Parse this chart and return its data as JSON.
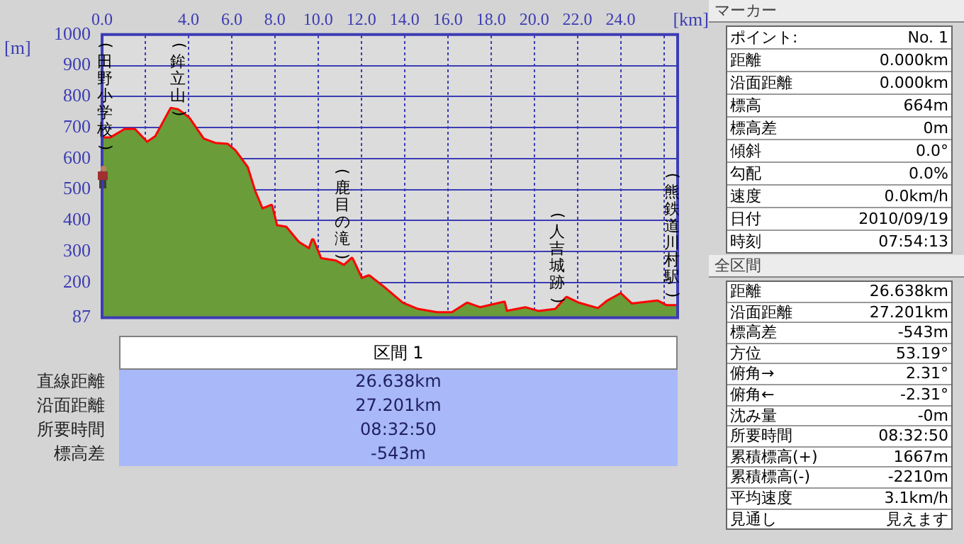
{
  "chart_data": [
    {
      "type": "area",
      "xlabel": "[km]",
      "ylabel": "[m]",
      "grid": true,
      "marker": "none",
      "x": [
        0,
        0.4,
        1.06,
        1.5,
        2.08,
        2.5,
        3.2,
        3.5,
        4.0,
        4.67,
        5.24,
        5.8,
        6.14,
        6.7,
        7.04,
        7.4,
        7.83,
        8.06,
        8.5,
        9.07,
        9.6,
        9.75,
        10.1,
        10.8,
        11.2,
        11.56,
        12.0,
        12.35,
        13.0,
        13.9,
        14.6,
        15.5,
        16.2,
        16.9,
        17.5,
        18.6,
        18.7,
        19.6,
        20.2,
        21.0,
        21.5,
        22.05,
        22.96,
        23.4,
        24.0,
        24.5,
        25.7,
        26.1,
        26.6
      ],
      "series": [
        {
          "type": "area",
          "color": "#6a9c3a",
          "values": [
            665,
            665,
            692,
            692,
            650,
            670,
            760,
            756,
            730,
            662,
            647,
            644,
            624,
            571,
            495,
            435,
            447,
            382,
            377,
            329,
            306,
            336,
            276,
            268,
            253,
            276,
            211,
            220,
            185,
            132,
            112,
            101,
            101,
            132,
            117,
            135,
            105,
            117,
            105,
            112,
            150,
            132,
            114,
            139,
            162,
            129,
            139,
            124,
            124
          ]
        },
        {
          "type": "line",
          "color": "#ff0000",
          "values": [
            665,
            665,
            692,
            692,
            650,
            670,
            760,
            756,
            730,
            662,
            647,
            644,
            624,
            571,
            495,
            435,
            447,
            382,
            377,
            329,
            306,
            336,
            276,
            268,
            253,
            276,
            211,
            220,
            185,
            132,
            112,
            101,
            101,
            132,
            117,
            135,
            105,
            117,
            105,
            112,
            150,
            132,
            114,
            139,
            162,
            129,
            139,
            124,
            124
          ]
        }
      ],
      "xlim": [
        0,
        26.638
      ],
      "xticks": [
        {
          "value": 0,
          "label": "0.0"
        },
        {
          "value": 2,
          "label": null
        },
        {
          "value": 4,
          "label": "4.0"
        },
        {
          "value": 6,
          "label": "6.0"
        },
        {
          "value": 8,
          "label": "8.0"
        },
        {
          "value": 10,
          "label": "10.0"
        },
        {
          "value": 12,
          "label": "12.0"
        },
        {
          "value": 14,
          "label": "14.0"
        },
        {
          "value": 16,
          "label": "16.0"
        },
        {
          "value": 18,
          "label": "18.0"
        },
        {
          "value": 20,
          "label": "20.0"
        },
        {
          "value": 22,
          "label": "22.0"
        },
        {
          "value": 24,
          "label": "24.0"
        },
        {
          "value": 26,
          "label": null
        }
      ],
      "ylim": [
        87,
        1000
      ],
      "yticks": [
        87,
        200,
        300,
        400,
        500,
        600,
        700,
        800,
        900,
        1000
      ],
      "annotations": [
        "(田野小学校)",
        "(鉾立山)",
        "(鹿目の滝)",
        "(人吉城跡)",
        "(熊鉄道川村駅)"
      ]
    },
    {
      "type": "other",
      "title": "区間 1",
      "annotations": [
        "直線距離",
        "26.638km",
        "沿面距離",
        "27.201km",
        "所要時間",
        "08:32:50",
        "標高差",
        "-543m"
      ]
    },
    {
      "type": "other",
      "title": "マーカー",
      "annotations": [
        "ポイント:",
        "No. 1",
        "距離",
        "0.000km",
        "沿面距離",
        "0.000km",
        "標高",
        "664m",
        "標高差",
        "0m",
        "傾斜",
        "0.0°",
        "勾配",
        "0.0%",
        "速度",
        "0.0km/h",
        "日付",
        "2010/09/19",
        "時刻",
        "07:54:13"
      ]
    },
    {
      "type": "other",
      "title": "全区間",
      "annotations": [
        "距離",
        "26.638km",
        "沿面距離",
        "27.201km",
        "標高差",
        "-543m",
        "方位",
        "53.19°",
        "俯角→",
        "2.31°",
        "俯角←",
        "-2.31°",
        "沈み量",
        "-0m",
        "所要時間",
        "08:32:50",
        "累積標高(+)",
        "1667m",
        "累積標高(-)",
        "-2210m",
        "平均速度",
        "3.1km/h",
        "見通し",
        "見えます"
      ]
    }
  ]
}
